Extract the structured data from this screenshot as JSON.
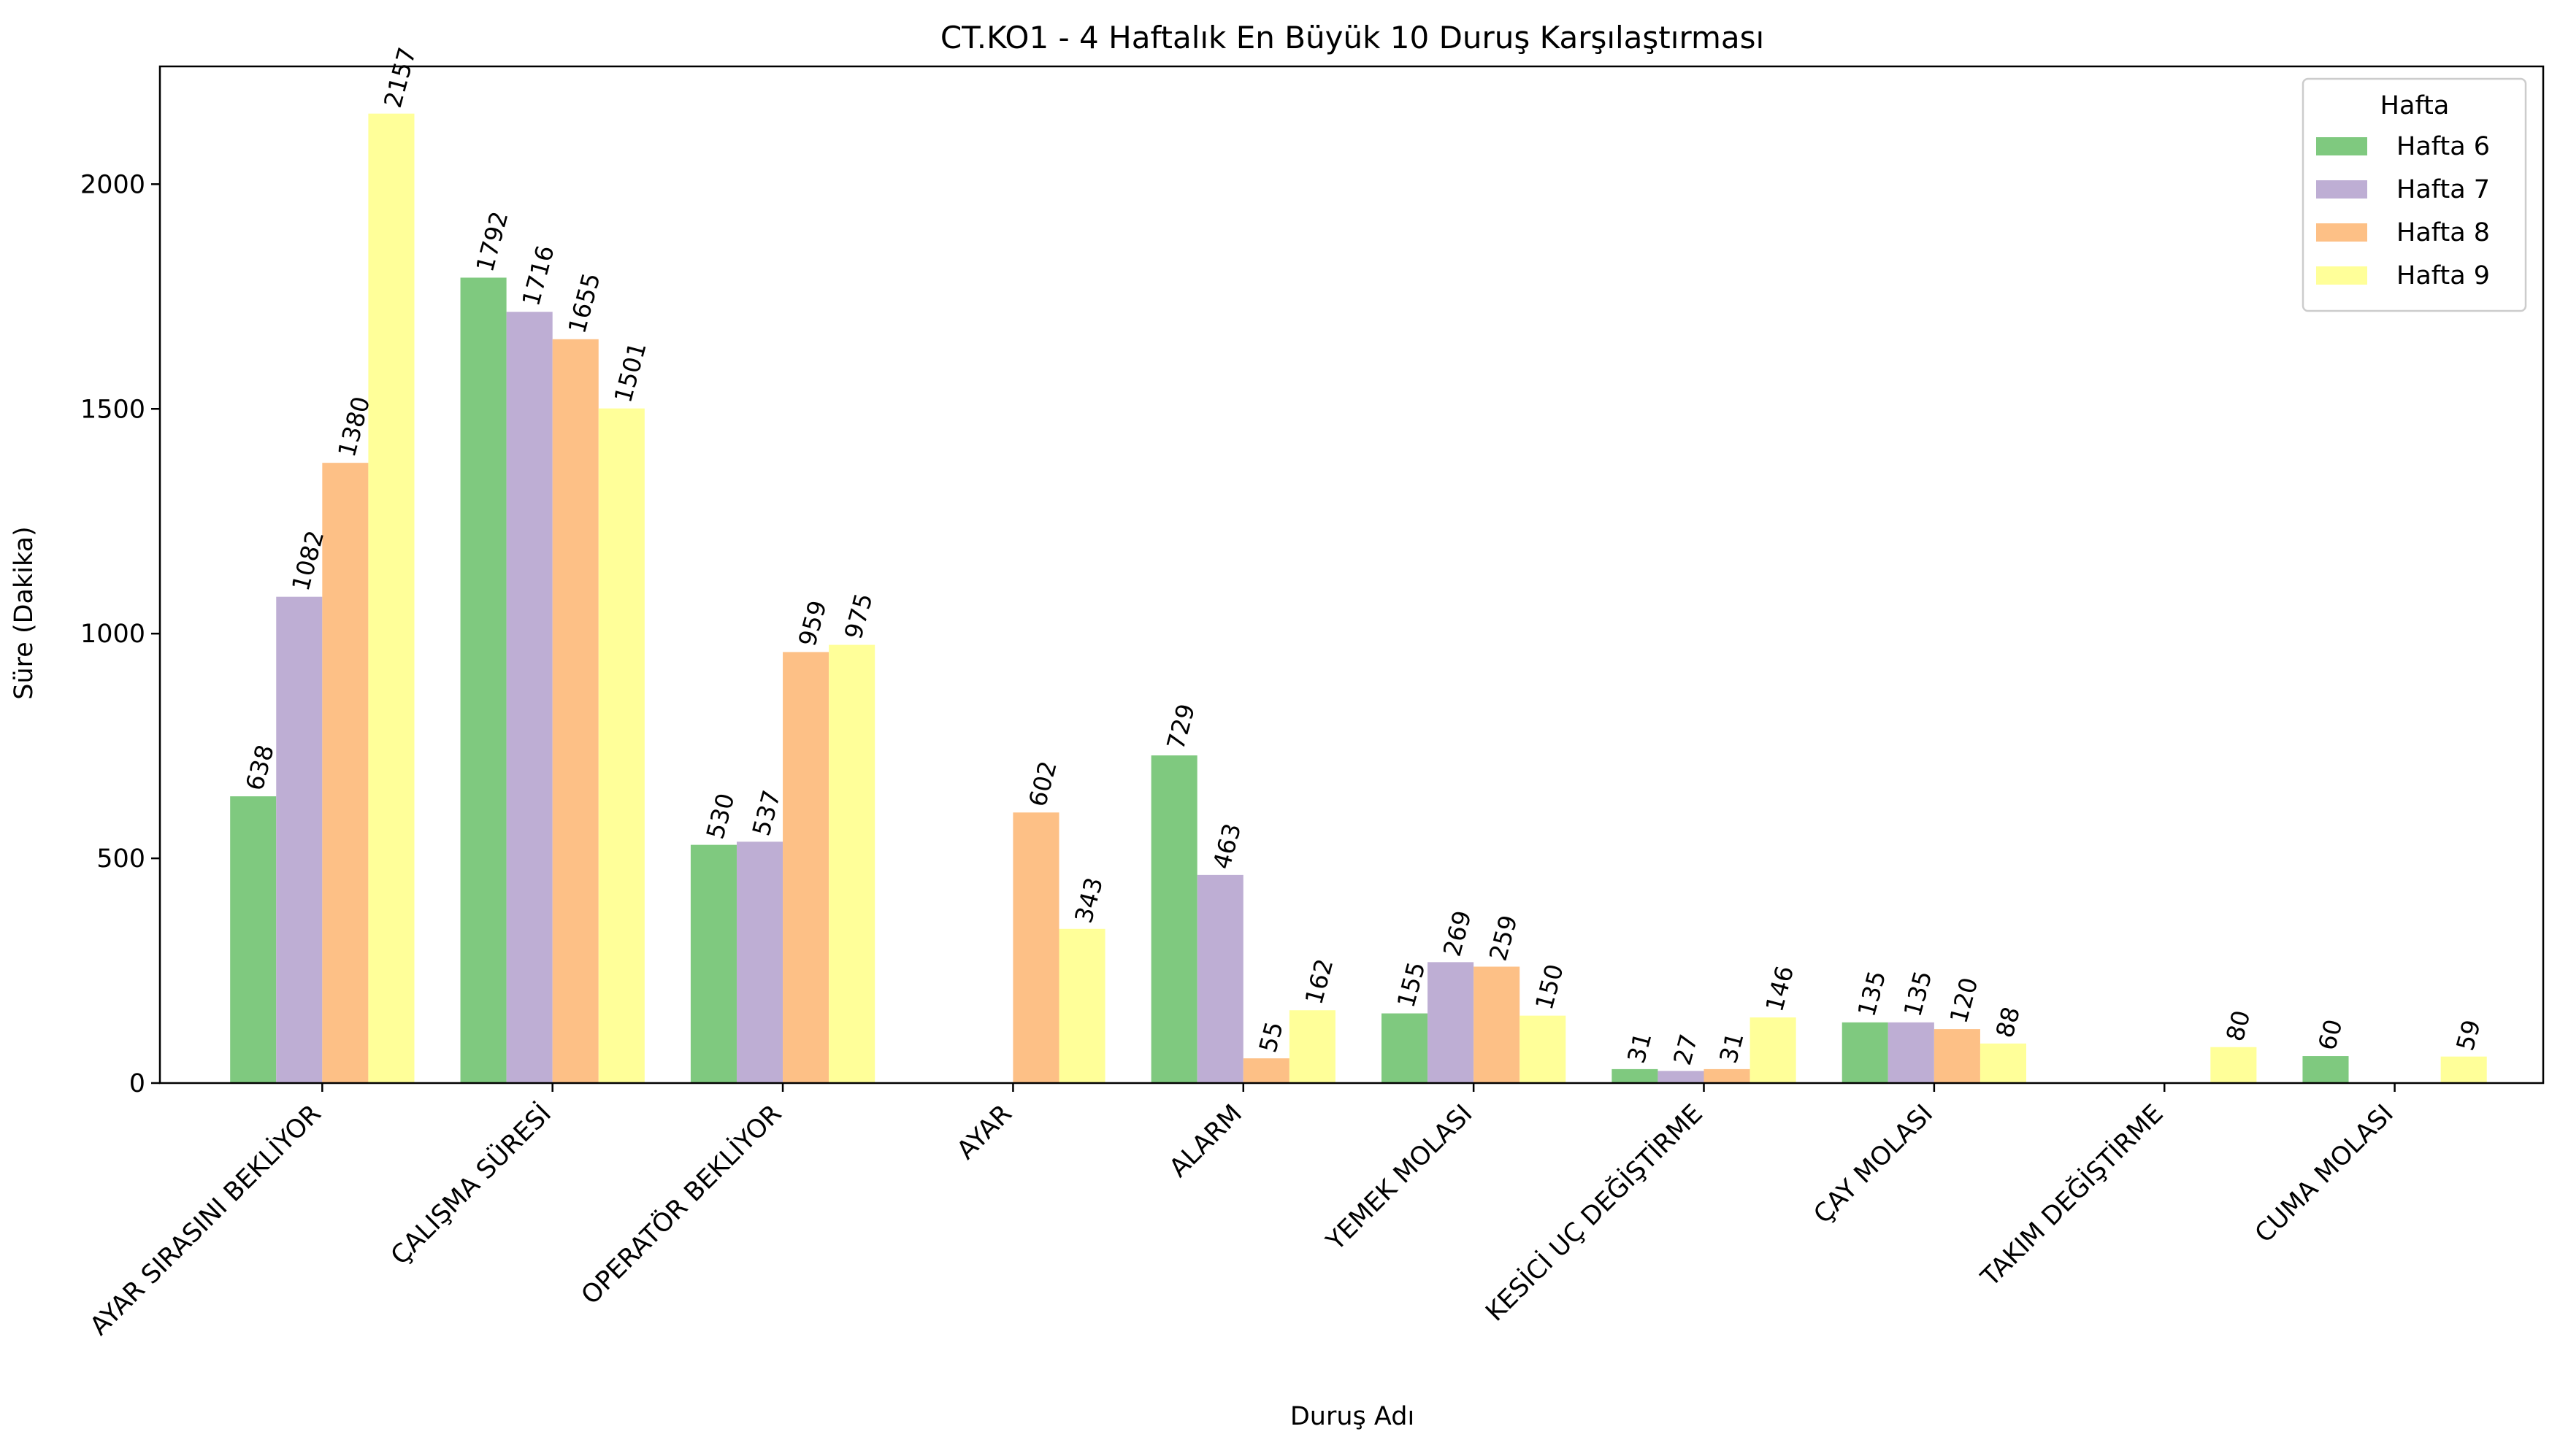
{
  "chart_data": {
    "type": "bar",
    "title": "CT.KO1 - 4 Haftalık En Büyük 10 Duruş Karşılaştırması",
    "xlabel": "Duruş Adı",
    "ylabel": "Süre (Dakika)",
    "ylim": [
      0,
      2262
    ],
    "yticks": [
      0,
      500,
      1000,
      1500,
      2000
    ],
    "grid": false,
    "legend": {
      "title": "Hafta",
      "placement": "top-right"
    },
    "categories": [
      "AYAR SIRASINI BEKLİYOR",
      "ÇALIŞMA SÜRESİ",
      "OPERATÖR BEKLİYOR",
      "AYAR",
      "ALARM",
      "YEMEK MOLASI",
      "KESİCİ UÇ DEĞİŞTİRME",
      "ÇAY MOLASI",
      "TAKIM DEĞİŞTİRME",
      "CUMA  MOLASI"
    ],
    "series": [
      {
        "name": "Hafta 6",
        "color": "#7fc97f",
        "values": [
          638,
          1792,
          530,
          null,
          729,
          155,
          31,
          135,
          null,
          60
        ]
      },
      {
        "name": "Hafta 7",
        "color": "#beaed4",
        "values": [
          1082,
          1716,
          537,
          null,
          463,
          269,
          27,
          135,
          null,
          null
        ]
      },
      {
        "name": "Hafta 8",
        "color": "#fdc086",
        "values": [
          1380,
          1655,
          959,
          602,
          55,
          259,
          31,
          120,
          null,
          null
        ]
      },
      {
        "name": "Hafta 9",
        "color": "#ffff99",
        "values": [
          2157,
          1501,
          975,
          343,
          162,
          150,
          146,
          88,
          80,
          59
        ]
      }
    ]
  }
}
